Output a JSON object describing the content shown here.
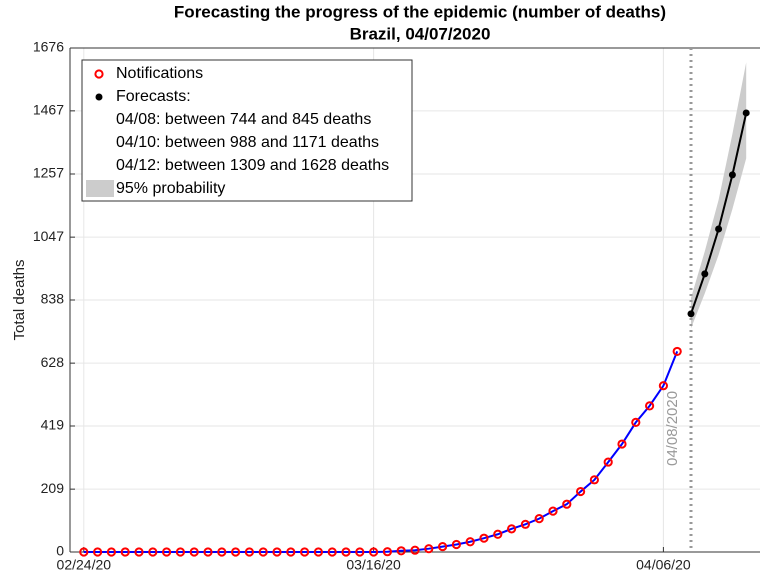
{
  "chart_data": {
    "type": "line",
    "title": "Forecasting the progress of the epidemic (number of deaths)",
    "subtitle": "Brazil, 04/07/2020",
    "y_label": "Total deaths",
    "xlim": [
      "2020-02-23",
      "2020-04-13"
    ],
    "ylim": [
      0,
      1676
    ],
    "yticks": [
      0,
      209,
      419,
      628,
      838,
      1047,
      1257,
      1467,
      1676
    ],
    "xticks": [
      {
        "value": "2020-02-24",
        "label": "02/24/20"
      },
      {
        "value": "2020-03-16",
        "label": "03/16/20"
      },
      {
        "value": "2020-04-06",
        "label": "04/06/20"
      }
    ],
    "grid": true,
    "legend_position": "upper left",
    "series": [
      {
        "name": "Notifications",
        "color": "#ff0000",
        "line_color": "#0000ff",
        "x": [
          "2020-02-24",
          "2020-02-25",
          "2020-02-26",
          "2020-02-27",
          "2020-02-28",
          "2020-02-29",
          "2020-03-01",
          "2020-03-02",
          "2020-03-03",
          "2020-03-04",
          "2020-03-05",
          "2020-03-06",
          "2020-03-07",
          "2020-03-08",
          "2020-03-09",
          "2020-03-10",
          "2020-03-11",
          "2020-03-12",
          "2020-03-13",
          "2020-03-14",
          "2020-03-15",
          "2020-03-16",
          "2020-03-17",
          "2020-03-18",
          "2020-03-19",
          "2020-03-20",
          "2020-03-21",
          "2020-03-22",
          "2020-03-23",
          "2020-03-24",
          "2020-03-25",
          "2020-03-26",
          "2020-03-27",
          "2020-03-28",
          "2020-03-29",
          "2020-03-30",
          "2020-03-31",
          "2020-04-01",
          "2020-04-02",
          "2020-04-03",
          "2020-04-04",
          "2020-04-05",
          "2020-04-06",
          "2020-04-07"
        ],
        "values": [
          0,
          0,
          0,
          0,
          0,
          0,
          0,
          0,
          0,
          0,
          0,
          0,
          0,
          0,
          0,
          0,
          0,
          0,
          0,
          0,
          0,
          0,
          1,
          4,
          6,
          11,
          18,
          25,
          34,
          46,
          59,
          77,
          92,
          111,
          136,
          159,
          201,
          240,
          299,
          359,
          431,
          486,
          553,
          667
        ]
      },
      {
        "name": "Forecasts:",
        "color": "#000000",
        "x": [
          "2020-04-08",
          "2020-04-09",
          "2020-04-10",
          "2020-04-11",
          "2020-04-12"
        ],
        "values": [
          792,
          925,
          1074,
          1254,
          1460
        ],
        "lower": [
          744,
          860,
          988,
          1140,
          1309
        ],
        "upper": [
          845,
          1000,
          1171,
          1390,
          1628
        ]
      }
    ],
    "band_name": "95% probability",
    "band_color": "#cccccc",
    "legend_notes": [
      "04/08: between 744 and 845 deaths",
      "04/10: between 988 and 1171 deaths",
      "04/12: between 1309 and 1628 deaths"
    ],
    "vline": {
      "x": "2020-04-08",
      "label": "04/08/2020",
      "color": "#999999"
    }
  }
}
